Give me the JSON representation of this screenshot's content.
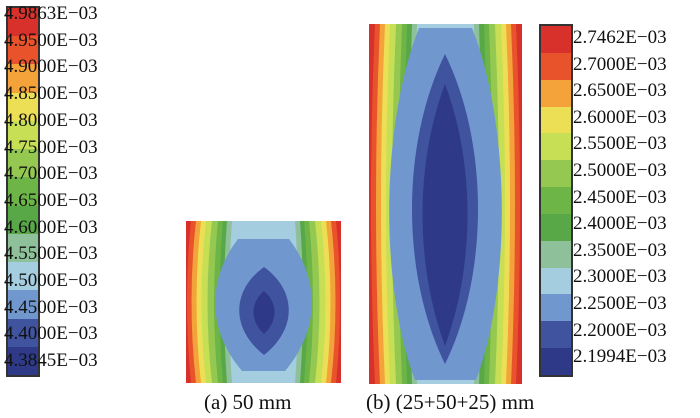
{
  "panel_a": {
    "caption": "(a) 50 mm",
    "legend_labels": [
      "4.9863E−03",
      "4.9500E−03",
      "4.9000E−03",
      "4.8500E−03",
      "4.8000E−03",
      "4.7500E−03",
      "4.7000E−03",
      "4.6500E−03",
      "4.6000E−03",
      "4.5500E−03",
      "4.5000E−03",
      "4.4500E−03",
      "4.4000E−03",
      "4.3845E−03"
    ]
  },
  "panel_b": {
    "caption": "(b) (25+50+25) mm",
    "legend_labels": [
      "2.7462E−03",
      "2.7000E−03",
      "2.6500E−03",
      "2.6000E−03",
      "2.5500E−03",
      "2.5000E−03",
      "2.4500E−03",
      "2.4000E−03",
      "2.3500E−03",
      "2.3000E−03",
      "2.2500E−03",
      "2.2000E−03",
      "2.1994E−03"
    ]
  },
  "colors": {
    "scale": [
      "#d8302a",
      "#e9532b",
      "#f3a33a",
      "#ecdf55",
      "#c6df55",
      "#94c850",
      "#6eb548",
      "#59a848",
      "#8ec19a",
      "#a5cde0",
      "#7197cf",
      "#3f539f",
      "#2e3a87"
    ],
    "frame": "#333333"
  }
}
